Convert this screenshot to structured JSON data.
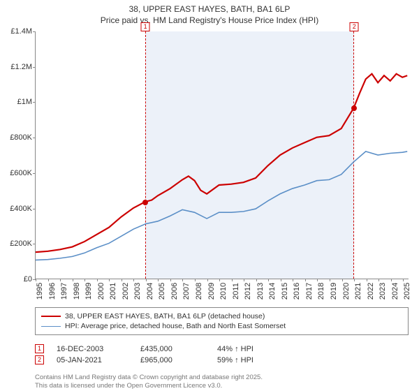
{
  "title_line1": "38, UPPER EAST HAYES, BATH, BA1 6LP",
  "title_line2": "Price paid vs. HM Land Registry's House Price Index (HPI)",
  "chart": {
    "type": "line",
    "background_color": "#ffffff",
    "shade_color": "rgba(180,200,230,0.25)",
    "dash_color": "#c00",
    "x_years": [
      1995,
      1996,
      1997,
      1998,
      1999,
      2000,
      2001,
      2002,
      2003,
      2004,
      2005,
      2006,
      2007,
      2008,
      2009,
      2010,
      2011,
      2012,
      2013,
      2014,
      2015,
      2016,
      2017,
      2018,
      2019,
      2020,
      2021,
      2022,
      2023,
      2024,
      2025
    ],
    "y_ticks": [
      0,
      200000,
      400000,
      600000,
      800000,
      1000000,
      1200000,
      1400000
    ],
    "y_labels": [
      "£0",
      "£200K",
      "£400K",
      "£600K",
      "£800K",
      "£1M",
      "£1.2M",
      "£1.4M"
    ],
    "ylim": [
      0,
      1400000
    ],
    "xlim": [
      1995,
      2025.5
    ],
    "shade_start_year": 2003.96,
    "shade_end_year": 2021.01,
    "series": [
      {
        "name": "price_paid",
        "color": "#cc0000",
        "width": 2.2,
        "legend": "38, UPPER EAST HAYES, BATH, BA1 6LP (detached house)",
        "points": [
          [
            1995,
            150000
          ],
          [
            1996,
            155000
          ],
          [
            1997,
            165000
          ],
          [
            1998,
            180000
          ],
          [
            1999,
            210000
          ],
          [
            2000,
            250000
          ],
          [
            2001,
            290000
          ],
          [
            2002,
            350000
          ],
          [
            2003,
            400000
          ],
          [
            2003.96,
            435000
          ],
          [
            2004.5,
            445000
          ],
          [
            2005,
            470000
          ],
          [
            2006,
            510000
          ],
          [
            2007,
            560000
          ],
          [
            2007.5,
            580000
          ],
          [
            2008,
            555000
          ],
          [
            2008.5,
            500000
          ],
          [
            2009,
            480000
          ],
          [
            2010,
            530000
          ],
          [
            2011,
            535000
          ],
          [
            2012,
            545000
          ],
          [
            2013,
            570000
          ],
          [
            2014,
            640000
          ],
          [
            2015,
            700000
          ],
          [
            2016,
            740000
          ],
          [
            2017,
            770000
          ],
          [
            2018,
            800000
          ],
          [
            2019,
            810000
          ],
          [
            2020,
            850000
          ],
          [
            2021.01,
            965000
          ],
          [
            2021.5,
            1050000
          ],
          [
            2022,
            1130000
          ],
          [
            2022.5,
            1160000
          ],
          [
            2023,
            1110000
          ],
          [
            2023.5,
            1150000
          ],
          [
            2024,
            1120000
          ],
          [
            2024.5,
            1160000
          ],
          [
            2025,
            1140000
          ],
          [
            2025.4,
            1150000
          ]
        ]
      },
      {
        "name": "hpi",
        "color": "#5b8fc7",
        "width": 1.6,
        "legend": "HPI: Average price, detached house, Bath and North East Somerset",
        "points": [
          [
            1995,
            105000
          ],
          [
            1996,
            108000
          ],
          [
            1997,
            115000
          ],
          [
            1998,
            125000
          ],
          [
            1999,
            145000
          ],
          [
            2000,
            175000
          ],
          [
            2001,
            200000
          ],
          [
            2002,
            240000
          ],
          [
            2003,
            280000
          ],
          [
            2004,
            310000
          ],
          [
            2005,
            325000
          ],
          [
            2006,
            355000
          ],
          [
            2007,
            390000
          ],
          [
            2008,
            375000
          ],
          [
            2009,
            340000
          ],
          [
            2010,
            375000
          ],
          [
            2011,
            375000
          ],
          [
            2012,
            380000
          ],
          [
            2013,
            395000
          ],
          [
            2014,
            440000
          ],
          [
            2015,
            480000
          ],
          [
            2016,
            510000
          ],
          [
            2017,
            530000
          ],
          [
            2018,
            555000
          ],
          [
            2019,
            560000
          ],
          [
            2020,
            590000
          ],
          [
            2021,
            660000
          ],
          [
            2022,
            720000
          ],
          [
            2023,
            700000
          ],
          [
            2024,
            710000
          ],
          [
            2025,
            715000
          ],
          [
            2025.4,
            720000
          ]
        ]
      }
    ],
    "dots": [
      {
        "year": 2003.96,
        "value": 435000,
        "color": "#cc0000"
      },
      {
        "year": 2021.01,
        "value": 965000,
        "color": "#cc0000"
      }
    ],
    "flags": [
      {
        "num": "1",
        "year": 2003.96
      },
      {
        "num": "2",
        "year": 2021.01
      }
    ]
  },
  "events": [
    {
      "num": "1",
      "date": "16-DEC-2003",
      "price": "£435,000",
      "delta": "44% ↑ HPI"
    },
    {
      "num": "2",
      "date": "05-JAN-2021",
      "price": "£965,000",
      "delta": "59% ↑ HPI"
    }
  ],
  "footer1": "Contains HM Land Registry data © Crown copyright and database right 2025.",
  "footer2": "This data is licensed under the Open Government Licence v3.0."
}
